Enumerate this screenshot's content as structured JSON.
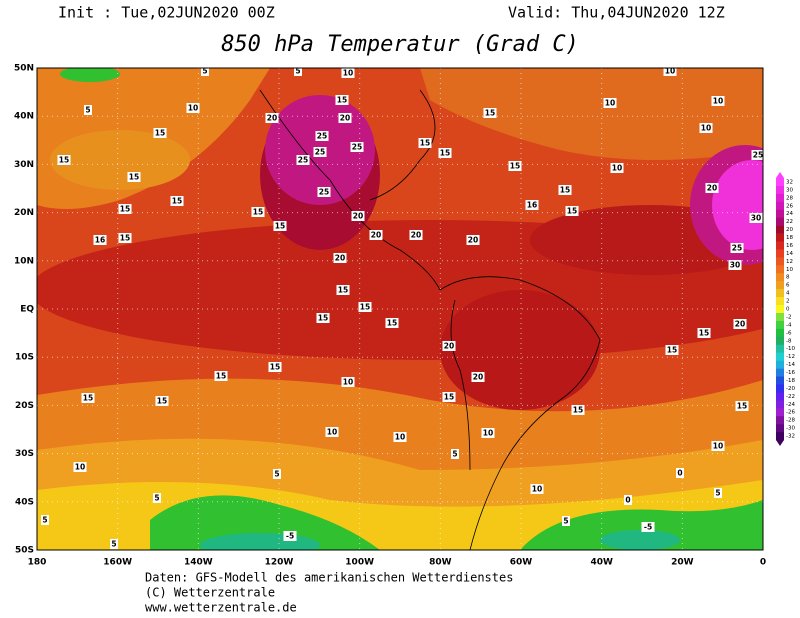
{
  "header": {
    "init": "Init : Tue,02JUN2020 00Z",
    "valid": "Valid: Thu,04JUN2020 12Z",
    "title": "850 hPa Temperatur (Grad C)"
  },
  "lat_labels": [
    "50N",
    "40N",
    "30N",
    "20N",
    "10N",
    "EQ",
    "10S",
    "20S",
    "30S",
    "40S",
    "50S"
  ],
  "lon_labels": [
    "180",
    "160W",
    "140W",
    "120W",
    "100W",
    "80W",
    "60W",
    "40W",
    "20W",
    "0"
  ],
  "contour_labels": [
    5,
    10,
    5,
    10,
    5,
    10,
    15,
    20,
    20,
    15,
    10,
    10,
    25,
    25,
    15,
    10,
    15,
    15,
    15,
    25,
    25,
    15,
    10,
    25,
    15,
    15,
    25,
    20,
    15,
    15,
    15,
    20,
    15,
    16,
    15,
    30,
    16,
    15,
    20,
    20,
    20,
    25,
    20,
    30,
    15,
    15,
    15,
    15,
    15,
    20,
    20,
    15,
    15,
    15,
    20,
    15,
    15,
    10,
    15,
    15,
    15,
    10,
    10,
    10,
    5,
    10,
    10,
    5,
    0,
    5,
    5,
    0,
    5,
    -5,
    -5,
    5,
    10,
    5
  ],
  "colorbar": {
    "levels": [
      32,
      30,
      28,
      26,
      24,
      22,
      20,
      18,
      16,
      14,
      12,
      10,
      8,
      6,
      4,
      2,
      0,
      -2,
      -4,
      -6,
      -8,
      -10,
      -12,
      -14,
      -16,
      -18,
      -20,
      -22,
      -24,
      -26,
      -28,
      -30,
      -32
    ],
    "colors": [
      "#ff40ff",
      "#f030e8",
      "#e020d0",
      "#d018b8",
      "#c01098",
      "#a80c70",
      "#a00c28",
      "#c01818",
      "#d82820",
      "#e84020",
      "#e85820",
      "#f07020",
      "#f08c20",
      "#f0a020",
      "#f0c020",
      "#f8e020",
      "#f8f820",
      "#80e040",
      "#40d040",
      "#20c040",
      "#20b060",
      "#20c0a0",
      "#20d0d0",
      "#20b0e0",
      "#2080e0",
      "#2050e0",
      "#3030f0",
      "#6020f0",
      "#8020e0",
      "#a020d0",
      "#8010a0",
      "#600880",
      "#400060"
    ]
  },
  "footer": [
    "Daten: GFS-Modell des amerikanischen Wetterdienstes",
    "(C) Wetterzentrale",
    "www.wetterzentrale.de"
  ]
}
